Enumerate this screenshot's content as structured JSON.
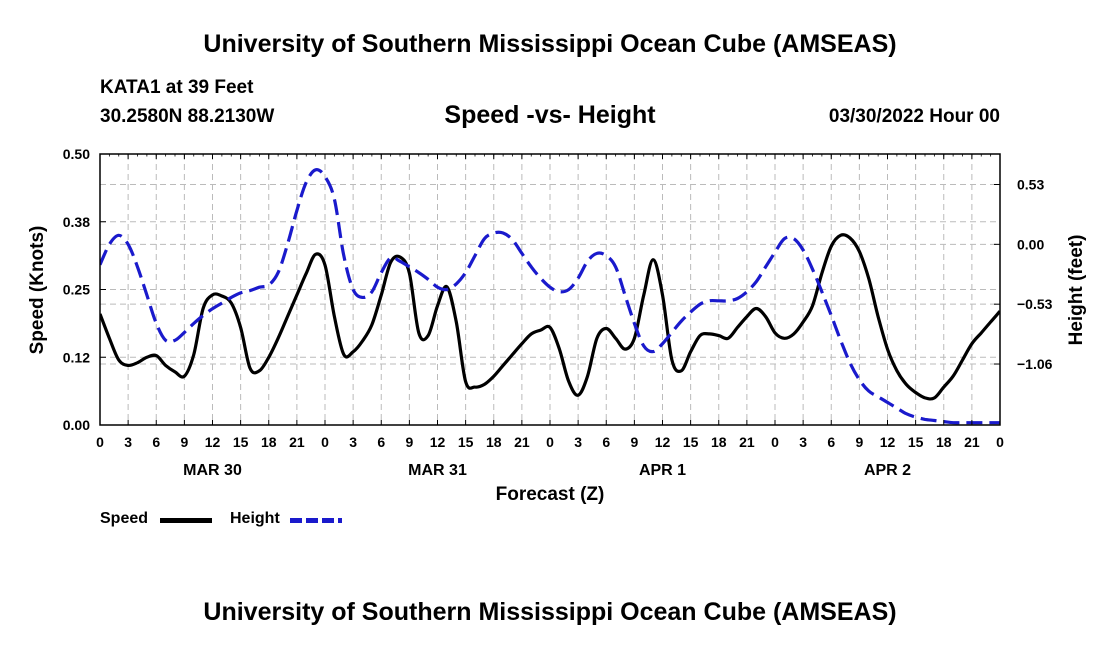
{
  "header": {
    "title": "University of Southern Mississippi Ocean Cube (AMSEAS)",
    "station": "KATA1 at 39 Feet",
    "coords": "30.2580N  88.2130W",
    "subtitle": "Speed -vs- Height",
    "datetime": "03/30/2022 Hour 00"
  },
  "footer": {
    "title": "University of Southern Mississippi Ocean Cube (AMSEAS)"
  },
  "legend": {
    "speed": "Speed",
    "height": "Height"
  },
  "colors": {
    "speed": "#000000",
    "height": "#1a1acc",
    "grid": "#bbbbbb"
  },
  "chart_data": {
    "type": "line",
    "title": "Speed -vs- Height",
    "xlabel": "Forecast (Z)",
    "ylabel": "Speed (Knots)",
    "y2label": "Height (feet)",
    "x_range_hours": [
      0,
      96
    ],
    "ylim": [
      0,
      0.5
    ],
    "y2lim": [
      -1.6,
      0.8
    ],
    "y_ticks": [
      "0.00",
      "0.12",
      "0.25",
      "0.38",
      "0.50"
    ],
    "y2_ticks": [
      {
        "value": 0.53,
        "label": "0.53"
      },
      {
        "value": 0.0,
        "label": "0.00"
      },
      {
        "value": -0.53,
        "label": "−0.53"
      },
      {
        "value": -1.06,
        "label": "−1.06"
      }
    ],
    "x_tick_labels": [
      "0",
      "3",
      "6",
      "9",
      "12",
      "15",
      "18",
      "21",
      "0",
      "3",
      "6",
      "9",
      "12",
      "15",
      "18",
      "21",
      "0",
      "3",
      "6",
      "9",
      "12",
      "15",
      "18",
      "21",
      "0",
      "3",
      "6",
      "9",
      "12",
      "15",
      "18",
      "21",
      "0"
    ],
    "day_labels": [
      {
        "hour": 12,
        "label": "MAR 30"
      },
      {
        "hour": 36,
        "label": "MAR 31"
      },
      {
        "hour": 60,
        "label": "APR 1"
      },
      {
        "hour": 84,
        "label": "APR 2"
      }
    ],
    "grid": true,
    "series": [
      {
        "name": "Speed",
        "axis": "left",
        "style": "solid",
        "x": [
          0,
          1,
          2,
          3,
          4,
          5,
          6,
          7,
          8,
          9,
          10,
          11,
          12,
          13,
          14,
          15,
          16,
          17,
          18,
          19,
          20,
          21,
          22,
          23,
          24,
          25,
          26,
          27,
          28,
          29,
          30,
          31,
          32,
          33,
          34,
          35,
          36,
          37,
          38,
          39,
          40,
          41,
          42,
          43,
          44,
          45,
          46,
          47,
          48,
          49,
          50,
          51,
          52,
          53,
          54,
          55,
          56,
          57,
          58,
          59,
          60,
          61,
          62,
          63,
          64,
          65,
          66,
          67,
          68,
          69,
          70,
          71,
          72,
          73,
          74,
          75,
          76,
          77,
          78,
          79,
          80,
          81,
          82,
          83,
          84,
          85,
          86,
          87,
          88,
          89,
          90,
          91,
          92,
          93,
          94,
          95,
          96
        ],
        "values": [
          0.205,
          0.16,
          0.12,
          0.11,
          0.115,
          0.125,
          0.128,
          0.11,
          0.098,
          0.09,
          0.13,
          0.215,
          0.24,
          0.238,
          0.225,
          0.18,
          0.105,
          0.1,
          0.125,
          0.16,
          0.2,
          0.24,
          0.28,
          0.315,
          0.295,
          0.2,
          0.13,
          0.135,
          0.155,
          0.185,
          0.24,
          0.3,
          0.31,
          0.28,
          0.17,
          0.165,
          0.22,
          0.255,
          0.19,
          0.08,
          0.07,
          0.075,
          0.09,
          0.11,
          0.13,
          0.15,
          0.168,
          0.175,
          0.18,
          0.14,
          0.08,
          0.055,
          0.09,
          0.16,
          0.178,
          0.16,
          0.14,
          0.16,
          0.24,
          0.305,
          0.24,
          0.12,
          0.1,
          0.135,
          0.165,
          0.168,
          0.165,
          0.16,
          0.18,
          0.2,
          0.215,
          0.2,
          0.17,
          0.16,
          0.168,
          0.19,
          0.22,
          0.28,
          0.33,
          0.35,
          0.345,
          0.32,
          0.27,
          0.2,
          0.14,
          0.1,
          0.075,
          0.06,
          0.05,
          0.05,
          0.07,
          0.09,
          0.12,
          0.15,
          0.17,
          0.19,
          0.21
        ]
      },
      {
        "name": "Height",
        "axis": "right",
        "style": "dashed",
        "x": [
          0,
          1,
          2,
          3,
          4,
          5,
          6,
          7,
          8,
          9,
          10,
          11,
          12,
          13,
          14,
          15,
          16,
          17,
          18,
          19,
          20,
          21,
          22,
          23,
          24,
          25,
          26,
          27,
          28,
          29,
          30,
          31,
          32,
          33,
          34,
          35,
          36,
          37,
          38,
          39,
          40,
          41,
          42,
          43,
          44,
          45,
          46,
          47,
          48,
          49,
          50,
          51,
          52,
          53,
          54,
          55,
          56,
          57,
          58,
          59,
          60,
          61,
          62,
          63,
          64,
          65,
          66,
          67,
          68,
          69,
          70,
          71,
          72,
          73,
          74,
          75,
          76,
          77,
          78,
          79,
          80,
          81,
          82,
          83,
          84,
          85,
          86,
          87,
          88,
          89,
          90,
          91,
          92,
          93,
          94,
          95,
          96
        ],
        "values": [
          -0.18,
          0.0,
          0.08,
          0.0,
          -0.2,
          -0.45,
          -0.7,
          -0.85,
          -0.85,
          -0.78,
          -0.7,
          -0.63,
          -0.57,
          -0.52,
          -0.47,
          -0.43,
          -0.41,
          -0.38,
          -0.36,
          -0.25,
          0.0,
          0.3,
          0.55,
          0.66,
          0.6,
          0.4,
          -0.1,
          -0.4,
          -0.47,
          -0.42,
          -0.25,
          -0.12,
          -0.15,
          -0.2,
          -0.25,
          -0.31,
          -0.38,
          -0.4,
          -0.35,
          -0.25,
          -0.1,
          0.05,
          0.1,
          0.1,
          0.04,
          -0.08,
          -0.2,
          -0.3,
          -0.38,
          -0.42,
          -0.4,
          -0.3,
          -0.15,
          -0.08,
          -0.1,
          -0.2,
          -0.45,
          -0.7,
          -0.9,
          -0.95,
          -0.88,
          -0.78,
          -0.68,
          -0.6,
          -0.53,
          -0.5,
          -0.5,
          -0.5,
          -0.48,
          -0.42,
          -0.33,
          -0.2,
          -0.07,
          0.05,
          0.05,
          -0.05,
          -0.22,
          -0.42,
          -0.63,
          -0.85,
          -1.05,
          -1.2,
          -1.3,
          -1.35,
          -1.4,
          -1.45,
          -1.5,
          -1.53,
          -1.55,
          -1.56,
          -1.57,
          -1.58,
          -1.58,
          -1.58,
          -1.58,
          -1.58,
          -1.58
        ]
      }
    ]
  }
}
